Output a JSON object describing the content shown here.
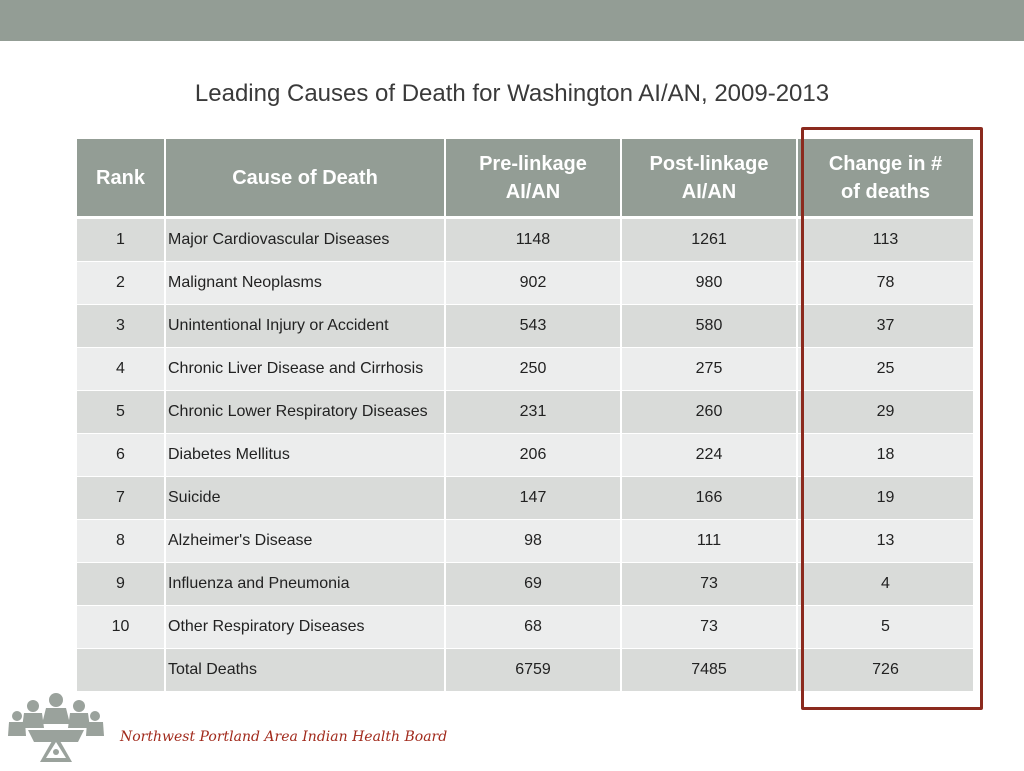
{
  "title": "Leading Causes of Death for Washington AI/AN, 2009-2013",
  "table": {
    "headers": {
      "rank": "Rank",
      "cause": "Cause of Death",
      "pre_line1": "Pre-linkage",
      "pre_line2": "AI/AN",
      "post_line1": "Post-linkage",
      "post_line2": "AI/AN",
      "change_line1": "Change in #",
      "change_line2": "of deaths"
    },
    "rows": [
      {
        "rank": "1",
        "cause": "Major Cardiovascular Diseases",
        "pre": "1148",
        "post": "1261",
        "change": "113"
      },
      {
        "rank": "2",
        "cause": "Malignant Neoplasms",
        "pre": "902",
        "post": "980",
        "change": "78"
      },
      {
        "rank": "3",
        "cause": "Unintentional Injury or Accident",
        "pre": "543",
        "post": "580",
        "change": "37"
      },
      {
        "rank": "4",
        "cause": "Chronic Liver Disease and Cirrhosis",
        "pre": "250",
        "post": "275",
        "change": "25"
      },
      {
        "rank": "5",
        "cause": "Chronic Lower Respiratory Diseases",
        "pre": "231",
        "post": "260",
        "change": "29"
      },
      {
        "rank": "6",
        "cause": "Diabetes Mellitus",
        "pre": "206",
        "post": "224",
        "change": "18"
      },
      {
        "rank": "7",
        "cause": "Suicide",
        "pre": "147",
        "post": "166",
        "change": "19"
      },
      {
        "rank": "8",
        "cause": "Alzheimer's Disease",
        "pre": "98",
        "post": "111",
        "change": "13"
      },
      {
        "rank": "9",
        "cause": "Influenza and Pneumonia",
        "pre": "69",
        "post": "73",
        "change": "4"
      },
      {
        "rank": "10",
        "cause": "Other Respiratory Diseases",
        "pre": "68",
        "post": "73",
        "change": "5"
      },
      {
        "rank": "",
        "cause": "Total Deaths",
        "pre": "6759",
        "post": "7485",
        "change": "726"
      }
    ]
  },
  "footer": {
    "org_name": "Northwest Portland Area Indian Health Board",
    "logo_icon": "npaihb-logo-icon"
  },
  "colors": {
    "header_bg": "#939d95",
    "row_dark": "#d9dbd9",
    "row_light": "#eceded",
    "highlight_border": "#8b2a1e",
    "footer_text": "#a12a1c"
  }
}
